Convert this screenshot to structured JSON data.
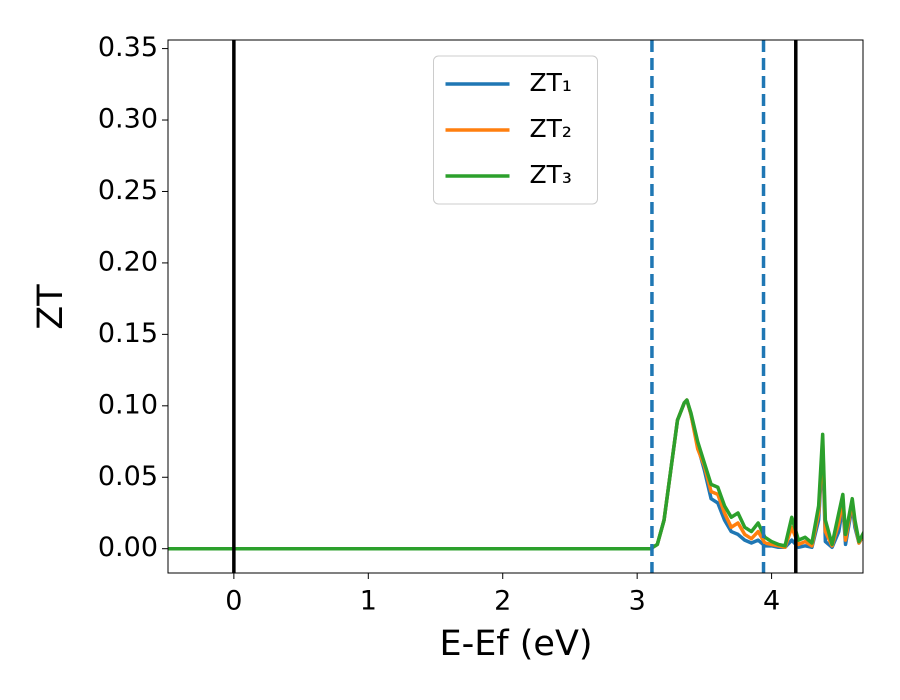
{
  "chart_data": {
    "type": "line",
    "xlabel": "E-Ef (eV)",
    "ylabel": "ZT",
    "xlim": [
      -0.49,
      4.68
    ],
    "ylim": [
      -0.017,
      0.356
    ],
    "xticks": [
      0,
      1,
      2,
      3,
      4
    ],
    "yticks": [
      {
        "value": 0,
        "label": "0.00"
      },
      {
        "value": 0.05,
        "label": "0.05"
      },
      {
        "value": 0.1,
        "label": "0.10"
      },
      {
        "value": 0.15,
        "label": "0.15"
      },
      {
        "value": 0.2,
        "label": "0.20"
      },
      {
        "value": 0.25,
        "label": "0.25"
      },
      {
        "value": 0.3,
        "label": "0.30"
      },
      {
        "value": 0.35,
        "label": "0.35"
      }
    ],
    "legend": "upper center",
    "vlines": [
      {
        "x": 0,
        "style": "solid",
        "color": "#000000"
      },
      {
        "x": 4.18,
        "style": "solid",
        "color": "#000000"
      },
      {
        "x": 3.11,
        "style": "dashed",
        "color": "#1f77b4"
      },
      {
        "x": 3.94,
        "style": "dashed",
        "color": "#1f77b4"
      }
    ],
    "x": [
      -0.5,
      0,
      1,
      2,
      3,
      3.1,
      3.15,
      3.2,
      3.25,
      3.3,
      3.35,
      3.37,
      3.4,
      3.45,
      3.5,
      3.55,
      3.6,
      3.65,
      3.7,
      3.75,
      3.8,
      3.85,
      3.9,
      3.95,
      4.0,
      4.05,
      4.1,
      4.15,
      4.2,
      4.25,
      4.3,
      4.35,
      4.38,
      4.4,
      4.45,
      4.5,
      4.53,
      4.55,
      4.6,
      4.62,
      4.65,
      4.7
    ],
    "series": [
      {
        "name": "ZT₁",
        "color": "#1f77b4",
        "values": [
          0,
          0,
          0,
          0,
          0,
          0,
          0.003,
          0.02,
          0.055,
          0.09,
          0.102,
          0.104,
          0.094,
          0.072,
          0.055,
          0.035,
          0.032,
          0.02,
          0.012,
          0.01,
          0.006,
          0.004,
          0.006,
          0.002,
          0.002,
          0.001,
          0.001,
          0.006,
          0.001,
          0.002,
          0.001,
          0.02,
          0.07,
          0.005,
          0.001,
          0.012,
          0.03,
          0.003,
          0.03,
          0.015,
          0.004,
          0.012
        ]
      },
      {
        "name": "ZT₂",
        "color": "#ff7f0e",
        "values": [
          0,
          0,
          0,
          0,
          0,
          0,
          0.003,
          0.02,
          0.055,
          0.09,
          0.102,
          0.104,
          0.094,
          0.07,
          0.058,
          0.04,
          0.038,
          0.025,
          0.015,
          0.018,
          0.01,
          0.007,
          0.012,
          0.004,
          0.003,
          0.002,
          0.001,
          0.015,
          0.003,
          0.005,
          0.002,
          0.025,
          0.075,
          0.012,
          0.002,
          0.018,
          0.035,
          0.006,
          0.033,
          0.018,
          0.004,
          0.013
        ]
      },
      {
        "name": "ZT₃",
        "color": "#2ca02c",
        "values": [
          0,
          0,
          0,
          0,
          0,
          0,
          0.003,
          0.02,
          0.055,
          0.09,
          0.102,
          0.104,
          0.095,
          0.075,
          0.06,
          0.045,
          0.043,
          0.03,
          0.022,
          0.025,
          0.015,
          0.012,
          0.018,
          0.008,
          0.005,
          0.003,
          0.002,
          0.022,
          0.006,
          0.008,
          0.004,
          0.03,
          0.08,
          0.02,
          0.003,
          0.025,
          0.038,
          0.01,
          0.035,
          0.02,
          0.005,
          0.014
        ]
      }
    ]
  }
}
